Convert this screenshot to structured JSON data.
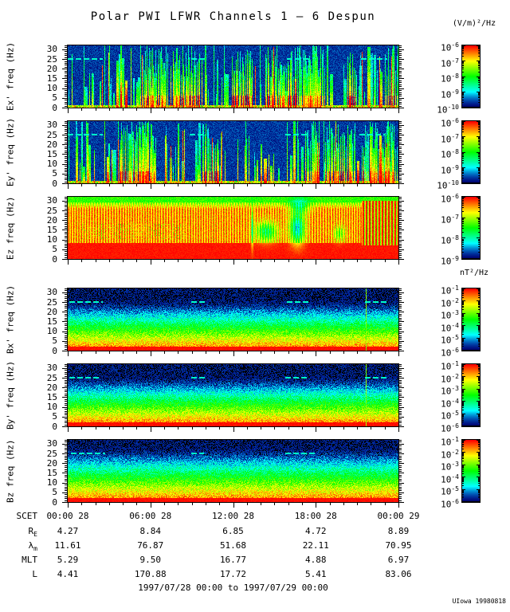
{
  "units": {
    "electric": "(V/m)²/Hz",
    "magnetic": "nT²/Hz"
  },
  "footer": {
    "time_range": "1997/07/28 00:00 to 1997/07/29 00:00",
    "stamp": "UIowa 19980818"
  },
  "colors": {
    "background": "#ffffff",
    "axis": "#000000",
    "colormap_order": [
      "blue",
      "cyan",
      "green",
      "yellow",
      "red"
    ],
    "colormap_low": "#0000ff",
    "colormap_high": "#ff0000",
    "narrowband_line": "#00ffcc"
  },
  "chart_data": {
    "type": "heatmap",
    "title": "Polar PWI LFWR Channels 1 — 6 Despun",
    "time_range": "1997/07/28 00:00 to 1997/07/29 00:00",
    "x_axis": {
      "label": "SCET",
      "tick_labels": [
        "00:00 28",
        "06:00 28",
        "12:00 28",
        "18:00 28",
        "00:00 29"
      ],
      "hours_span": 24,
      "major_tick_hours": 6,
      "minor_tick_hours": 1
    },
    "y_axis": {
      "unit": "Hz",
      "range": [
        0,
        32
      ],
      "tick_values": [
        0,
        5,
        10,
        15,
        20,
        25,
        30
      ]
    },
    "panels": [
      {
        "ylabel": "Ex' freq (Hz)",
        "field": "Ex'",
        "unit": "(V/m)²/Hz",
        "colorbar": {
          "exponents": [
            "-6",
            "-7",
            "-8",
            "-9",
            "-10"
          ]
        },
        "render": {
          "style": "e_burst",
          "seed": 7,
          "dashes": [
            [
              0.0,
              0.105
            ],
            [
              0.375,
              0.415
            ],
            [
              0.665,
              0.735
            ],
            [
              0.89,
              0.965
            ]
          ]
        },
        "summary": "Impulsive broadband electric bursts 0-30 Hz over a dark-blue background; clusters of intense red-orange bursts; narrowband cyan emission near 25 Hz."
      },
      {
        "ylabel": "Ey' freq (Hz)",
        "field": "Ey'",
        "unit": "(V/m)²/Hz",
        "colorbar": {
          "exponents": [
            "-6",
            "-7",
            "-8",
            "-9",
            "-10"
          ]
        },
        "render": {
          "style": "e_burst",
          "seed": 8,
          "dashes": [
            [
              0.0,
              0.105
            ],
            [
              0.37,
              0.41
            ],
            [
              0.66,
              0.73
            ],
            [
              0.885,
              0.96
            ]
          ]
        },
        "summary": "Same burst pattern as Ex'; vertical green/cyan spikes, red cores near strong events, cyan 25 Hz line segments."
      },
      {
        "ylabel": "Ez freq (Hz)",
        "field": "Ez",
        "unit": "(V/m)²/Hz",
        "colorbar": {
          "exponents": [
            "-6",
            "-7",
            "-8",
            "-9"
          ]
        },
        "render": {
          "style": "ez_red",
          "seed": 9,
          "blobs": [
            [
              0.557,
              16,
              1.5,
              10,
              -0.4
            ],
            [
              0.6,
              14,
              13,
              5,
              -0.42
            ],
            [
              0.693,
              16,
              9,
              8,
              -0.58
            ],
            [
              0.7,
              27,
              12,
              4,
              -0.32
            ],
            [
              0.82,
              13,
              7,
              4,
              -0.26
            ]
          ],
          "dot_region": [
            0.04,
            0.36,
            10,
            18
          ],
          "stripes_from": 0.888
        },
        "summary": "Saturated red emission below ~26 Hz with fine yellow vertical banding; green band near 30 Hz; green/blue depressions around 14-17 Hz near 14:30-17:00; strong striping after ~22:30."
      },
      {
        "ylabel": "Bx' freq (Hz)",
        "field": "Bx'",
        "unit": "nT²/Hz",
        "colorbar": {
          "exponents": [
            "-1",
            "-2",
            "-3",
            "-4",
            "-5",
            "-6"
          ]
        },
        "render": {
          "style": "b_grad",
          "seed": 4,
          "grad": 1.0,
          "vline": 0.904,
          "dashes": [
            [
              0.005,
              0.105
            ],
            [
              0.375,
              0.415
            ],
            [
              0.665,
              0.73
            ],
            [
              0.9,
              0.965
            ]
          ]
        },
        "summary": "Smooth power-law magnetic spectrum: red below ~2 Hz grading through yellow/green/cyan to dark blue with black speckle above ~20 Hz; dashed cyan line at 25 Hz; narrow vertical tone burst near 21:40."
      },
      {
        "ylabel": "By' freq (Hz)",
        "field": "By'",
        "unit": "nT²/Hz",
        "colorbar": {
          "exponents": [
            "-1",
            "-2",
            "-3",
            "-4",
            "-5",
            "-6"
          ]
        },
        "render": {
          "style": "b_grad",
          "seed": 5,
          "grad": 1.0,
          "vline": 0.904,
          "dashes": [
            [
              0.005,
              0.1
            ],
            [
              0.375,
              0.415
            ],
            [
              0.66,
              0.73
            ],
            [
              0.9,
              0.97
            ]
          ]
        },
        "summary": "Same gradient spectrum as Bx' with 25 Hz cyan line segments and the vertical tone burst near 21:40."
      },
      {
        "ylabel": "Bz freq (Hz)",
        "field": "Bz",
        "unit": "nT²/Hz",
        "colorbar": {
          "exponents": [
            "-1",
            "-2",
            "-3",
            "-4",
            "-5",
            "-6"
          ]
        },
        "render": {
          "style": "b_grad",
          "seed": 6,
          "grad": 0.92,
          "vline": null,
          "dashes": [
            [
              0.01,
              0.11
            ],
            [
              0.375,
              0.41
            ],
            [
              0.66,
              0.75
            ]
          ]
        },
        "summary": "Gradient spectrum like Bx'/By', slightly broader green band; dashed cyan 25 Hz line, no vertical tone burst."
      }
    ]
  },
  "ephemeris_table": {
    "rows": [
      {
        "label": "SCET",
        "values": [
          "00:00 28",
          "06:00 28",
          "12:00 28",
          "18:00 28",
          "00:00 29"
        ]
      },
      {
        "label": "R",
        "sub": "E",
        "values": [
          "4.27",
          "8.84",
          "6.85",
          "4.72",
          "8.89"
        ]
      },
      {
        "label": "λ",
        "sub": "m",
        "values": [
          "11.61",
          "76.87",
          "51.68",
          "22.11",
          "70.95"
        ]
      },
      {
        "label": "MLT",
        "values": [
          "5.29",
          "9.50",
          "16.77",
          "4.88",
          "6.97"
        ]
      },
      {
        "label": "L",
        "values": [
          "4.41",
          "170.88",
          "17.72",
          "5.41",
          "83.06"
        ]
      }
    ]
  }
}
